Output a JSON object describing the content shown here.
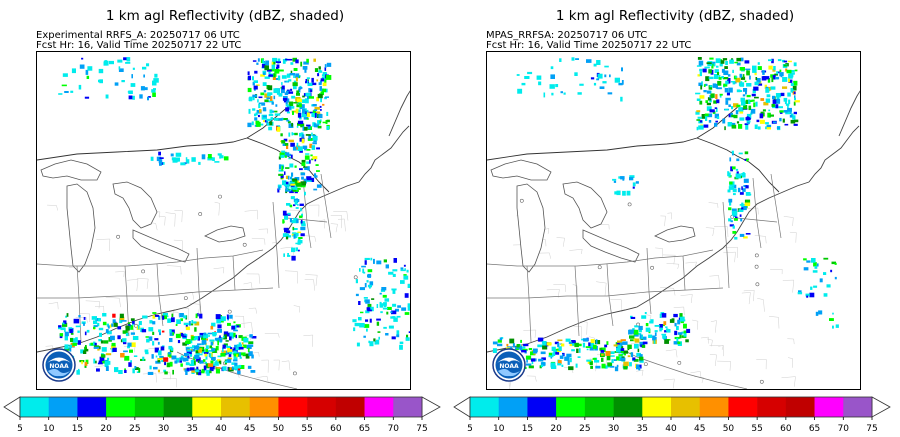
{
  "panels": [
    {
      "title": "1 km agl Reflectivity (dBZ, shaded)",
      "model_line": "Experimental RRFS_A: 20250717 06 UTC",
      "valid_line": "Fcst Hr: 16, Valid Time 20250717 22 UTC",
      "logo_text": "NOAA"
    },
    {
      "title": "1 km agl Reflectivity (dBZ, shaded)",
      "model_line": "MPAS_RRFSA: 20250717 06 UTC",
      "valid_line": "Fcst Hr: 16, Valid Time 20250717 22 UTC",
      "logo_text": "NOAA"
    }
  ],
  "colorbar": {
    "colors": [
      "#00ecec",
      "#01a0f6",
      "#0000f6",
      "#00ff00",
      "#00c800",
      "#009000",
      "#ffff00",
      "#e7c000",
      "#ff9000",
      "#ff0000",
      "#d60000",
      "#c00000",
      "#ff00ff",
      "#9955c9"
    ],
    "ticks": [
      "5",
      "10",
      "15",
      "20",
      "25",
      "30",
      "35",
      "40",
      "45",
      "50",
      "55",
      "60",
      "65",
      "70",
      "75"
    ]
  }
}
